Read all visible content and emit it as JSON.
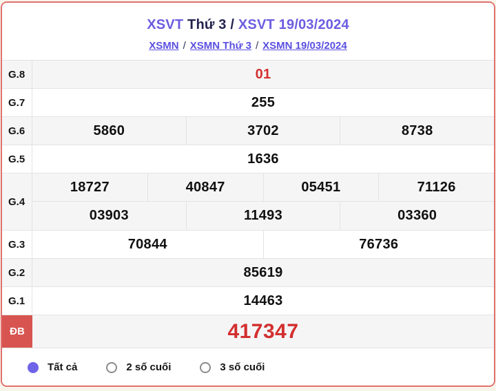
{
  "header": {
    "title": {
      "prefix": "XSVT",
      "middle": " Thứ 3 / ",
      "suffix": "XSVT 19/03/2024"
    },
    "breadcrumb": {
      "items": [
        "XSMN",
        "XSMN Thứ 3",
        "XSMN 19/03/2024"
      ],
      "separator": "/"
    }
  },
  "results": {
    "rows": [
      {
        "label": "G.8",
        "lines": [
          [
            "01"
          ]
        ]
      },
      {
        "label": "G.7",
        "lines": [
          [
            "255"
          ]
        ]
      },
      {
        "label": "G.6",
        "lines": [
          [
            "5860",
            "3702",
            "8738"
          ]
        ]
      },
      {
        "label": "G.5",
        "lines": [
          [
            "1636"
          ]
        ]
      },
      {
        "label": "G.4",
        "lines": [
          [
            "18727",
            "40847",
            "05451",
            "71126"
          ],
          [
            "03903",
            "11493",
            "03360"
          ]
        ]
      },
      {
        "label": "G.3",
        "lines": [
          [
            "70844",
            "76736"
          ]
        ]
      },
      {
        "label": "G.2",
        "lines": [
          [
            "85619"
          ]
        ]
      },
      {
        "label": "G.1",
        "lines": [
          [
            "14463"
          ]
        ]
      },
      {
        "label": "ĐB",
        "lines": [
          [
            "417347"
          ]
        ]
      }
    ]
  },
  "filters": {
    "options": [
      {
        "label": "Tất cả",
        "selected": true
      },
      {
        "label": "2 số cuối",
        "selected": false
      },
      {
        "label": "3 số cuối",
        "selected": false
      }
    ]
  },
  "colors": {
    "accent_purple": "#6c5ce0",
    "link_purple": "#5a4fe0",
    "result_red": "#d32f2f",
    "special_badge_red": "#d85450",
    "card_border_red": "#e0716d",
    "row_alt_gray": "#f5f5f6",
    "radio_selected_purple": "#6f63e8"
  }
}
